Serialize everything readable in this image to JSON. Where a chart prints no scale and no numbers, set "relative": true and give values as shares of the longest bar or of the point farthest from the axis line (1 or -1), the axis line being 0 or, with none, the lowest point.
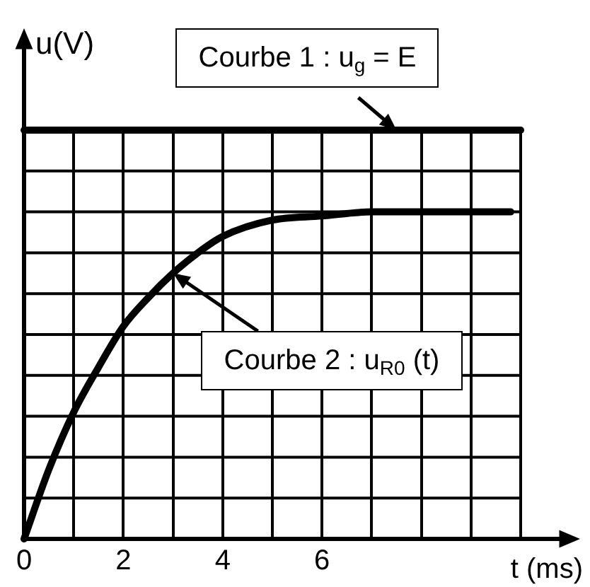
{
  "chart_data": {
    "type": "line",
    "relative": true,
    "xlabel": "t (ms)",
    "ylabel": "u(V)",
    "xlim": [
      0,
      10
    ],
    "xticks": [
      0,
      {
        "value": 1,
        "label": null
      },
      2,
      {
        "value": 3,
        "label": null
      },
      4,
      {
        "value": 5,
        "label": null
      },
      6,
      {
        "value": 7,
        "label": null
      },
      {
        "value": 8,
        "label": null
      },
      {
        "value": 9,
        "label": null
      },
      {
        "value": 10,
        "label": null
      }
    ],
    "grid": true,
    "legend": false,
    "marker": "none",
    "line_style": "solid",
    "series": [
      {
        "color": "#000000",
        "x": [
          0,
          10
        ],
        "values": [
          1,
          1
        ]
      },
      {
        "color": "#000000",
        "x": [
          0,
          0.5,
          1,
          1.5,
          2,
          2.5,
          3,
          3.5,
          4,
          5,
          6,
          7,
          8,
          9,
          9.8
        ],
        "values": [
          0,
          0.17,
          0.31,
          0.42,
          0.52,
          0.59,
          0.65,
          0.7,
          0.74,
          0.78,
          0.79,
          0.8,
          0.8,
          0.8,
          0.8
        ]
      }
    ],
    "annotations": [
      "Courbe 1 : u$_{g}$ = E",
      "Courbe 2 : u$_{R0}$ (t)"
    ]
  }
}
